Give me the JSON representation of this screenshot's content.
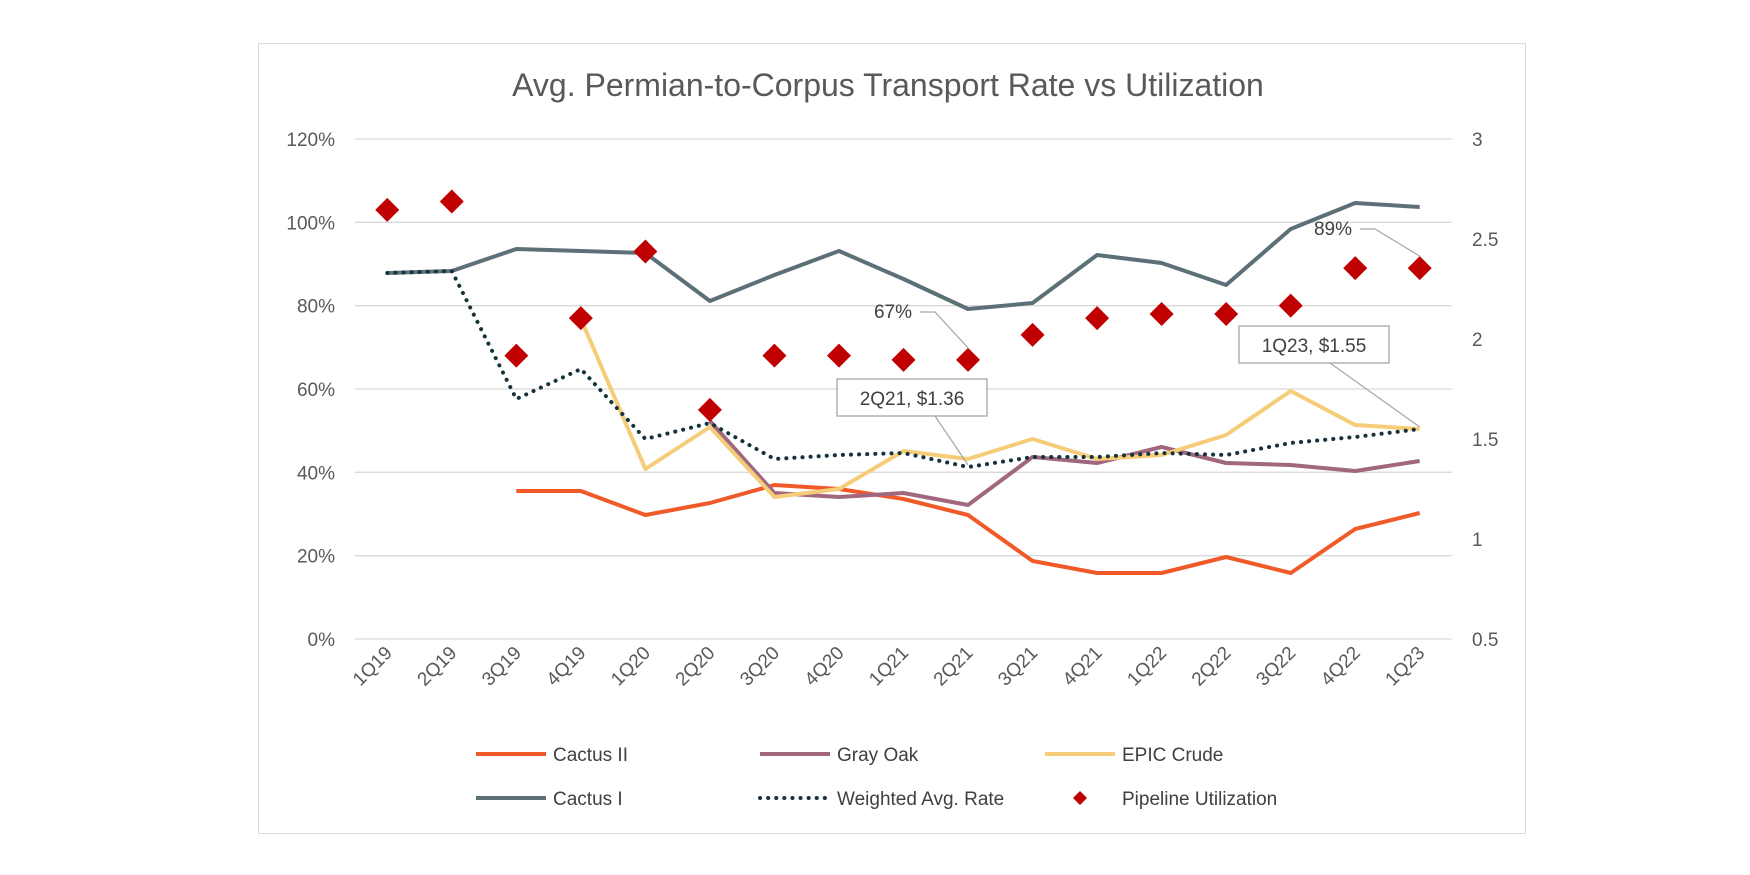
{
  "chart_data": {
    "type": "line",
    "title": "Avg. Permian-to-Corpus Transport Rate vs Utilization",
    "categories": [
      "1Q19",
      "2Q19",
      "3Q19",
      "4Q19",
      "1Q20",
      "2Q20",
      "3Q20",
      "4Q20",
      "1Q21",
      "2Q21",
      "3Q21",
      "4Q21",
      "1Q22",
      "2Q22",
      "3Q22",
      "4Q22",
      "1Q23"
    ],
    "y_left": {
      "ticks": [
        "0%",
        "20%",
        "40%",
        "60%",
        "80%",
        "100%",
        "120%"
      ],
      "ylim": [
        0,
        1.2
      ]
    },
    "y_right": {
      "ticks": [
        "0.5",
        "1",
        "1.5",
        "2",
        "2.5",
        "3"
      ],
      "ylim": [
        0.5,
        3
      ]
    },
    "grid": true,
    "legend_position": "bottom",
    "series": [
      {
        "name": "Cactus II",
        "axis": "right",
        "style": "line",
        "color": "#f05a28",
        "values": [
          null,
          null,
          1.24,
          1.24,
          1.12,
          1.18,
          1.27,
          1.25,
          1.2,
          1.12,
          0.89,
          0.83,
          0.83,
          0.91,
          0.83,
          1.05,
          1.13
        ]
      },
      {
        "name": "Gray Oak",
        "axis": "right",
        "style": "line",
        "color": "#a0677e",
        "values": [
          null,
          null,
          null,
          null,
          null,
          1.59,
          1.23,
          1.21,
          1.23,
          1.17,
          1.41,
          1.38,
          1.46,
          1.38,
          1.37,
          1.34,
          1.39
        ]
      },
      {
        "name": "EPIC Crude",
        "axis": "right",
        "style": "line",
        "color": "#f5cd78",
        "values": [
          null,
          null,
          null,
          2.1,
          1.35,
          1.56,
          1.21,
          1.25,
          1.44,
          1.4,
          1.5,
          1.4,
          1.42,
          1.52,
          1.74,
          1.57,
          1.55
        ]
      },
      {
        "name": "Cactus I",
        "axis": "right",
        "style": "line",
        "color": "#5d7078",
        "values": [
          2.33,
          2.34,
          2.45,
          2.44,
          2.43,
          2.19,
          2.32,
          2.44,
          2.3,
          2.15,
          2.18,
          2.42,
          2.38,
          2.27,
          2.55,
          2.68,
          2.66
        ]
      },
      {
        "name": "Weighted Avg. Rate",
        "axis": "right",
        "style": "dotted",
        "color": "#16333c",
        "values": [
          2.33,
          2.34,
          1.7,
          1.85,
          1.5,
          1.58,
          1.4,
          1.42,
          1.43,
          1.36,
          1.41,
          1.41,
          1.43,
          1.42,
          1.48,
          1.51,
          1.55
        ]
      },
      {
        "name": "Pipeline Utilization",
        "axis": "left",
        "style": "diamond",
        "color": "#c00000",
        "values": [
          1.03,
          1.05,
          0.68,
          0.77,
          0.93,
          0.55,
          0.68,
          0.68,
          0.67,
          0.67,
          0.73,
          0.77,
          0.78,
          0.78,
          0.8,
          0.89,
          0.89
        ]
      }
    ],
    "annotations": [
      {
        "text": "67%",
        "category": "2Q21",
        "series": "Pipeline Utilization",
        "boxed": false
      },
      {
        "text": "89%",
        "category": "1Q23",
        "series": "Pipeline Utilization",
        "boxed": false
      },
      {
        "text": "2Q21, $1.36",
        "category": "2Q21",
        "series": "Weighted Avg. Rate",
        "boxed": true
      },
      {
        "text": "1Q23, $1.55",
        "category": "1Q23",
        "series": "Weighted Avg. Rate",
        "boxed": true
      }
    ]
  }
}
